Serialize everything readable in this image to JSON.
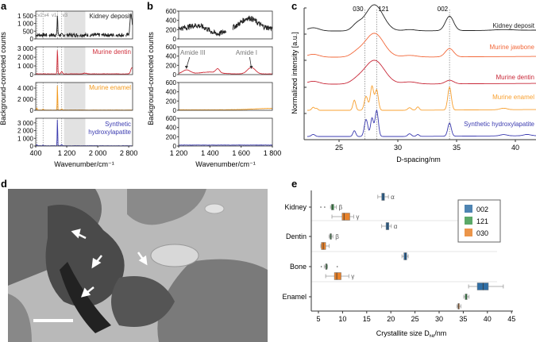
{
  "panel_labels": [
    "a",
    "b",
    "c",
    "d",
    "e"
  ],
  "chart_data": [
    {
      "id": "a",
      "type": "line",
      "xlabel": "Wavenumber/cm⁻¹",
      "ylabel": "Background-corrected counts",
      "xlim": [
        400,
        2900
      ],
      "xticks": [
        400,
        1200,
        2000,
        2800
      ],
      "xtick_labels": [
        "400",
        "1 200",
        "2 000",
        "2 800"
      ],
      "shaded_region": [
        1130,
        1680
      ],
      "reference_lines": [
        {
          "x": 430,
          "label": "v2"
        },
        {
          "x": 590,
          "label": "v4"
        },
        {
          "x": 960,
          "label": "v1"
        },
        {
          "x": 1070,
          "label": "v3"
        }
      ],
      "series": [
        {
          "name": "Kidney deposit",
          "color": "#222222",
          "ylim": [
            0,
            1800
          ],
          "yticks": [
            0,
            500,
            1000,
            1500
          ],
          "ytick_labels": [
            "0",
            "500",
            "1 000",
            "1 500"
          ],
          "baseline": 250,
          "noise": 120,
          "peaks": [
            [
              960,
              1300,
              8
            ],
            [
              2860,
              1400,
              25
            ]
          ],
          "gaps": [
            [
              700,
              740
            ],
            [
              1160,
              1200
            ],
            [
              1500,
              1530
            ],
            [
              1750,
              1790
            ],
            [
              2050,
              2090
            ],
            [
              2420,
              2460
            ],
            [
              2680,
              2720
            ]
          ]
        },
        {
          "name": "Murine dentin",
          "color": "#d0303c",
          "ylim": [
            0,
            3200
          ],
          "yticks": [
            0,
            1000,
            2000,
            3000
          ],
          "ytick_labels": [
            "0",
            "1 000",
            "2 000",
            "3 000"
          ],
          "baseline": 80,
          "noise": 25,
          "peaks": [
            [
              960,
              2800,
              8
            ],
            [
              1070,
              250,
              20
            ],
            [
              2880,
              700,
              30
            ],
            [
              1670,
              80,
              40
            ]
          ],
          "gaps": []
        },
        {
          "name": "Murine enamel",
          "color": "#f39a1e",
          "ylim": [
            0,
            5000
          ],
          "yticks": [
            0,
            2000,
            4000
          ],
          "ytick_labels": [
            "0",
            "2 000",
            "4 000"
          ],
          "baseline": 40,
          "noise": 20,
          "peaks": [
            [
              960,
              4600,
              6
            ],
            [
              430,
              350,
              10
            ],
            [
              590,
              200,
              10
            ],
            [
              1070,
              200,
              15
            ]
          ],
          "gaps": []
        },
        {
          "name": "Synthetic hydroxylapatite",
          "color": "#3b3bb0",
          "ylim": [
            0,
            3600
          ],
          "yticks": [
            0,
            1000,
            2000,
            3000
          ],
          "ytick_labels": [
            "0",
            "1 000",
            "2 000",
            "3 000"
          ],
          "baseline": 30,
          "noise": 15,
          "peaks": [
            [
              960,
              3500,
              6
            ],
            [
              430,
              150,
              10
            ],
            [
              590,
              100,
              10
            ],
            [
              1070,
              150,
              15
            ]
          ],
          "gaps": []
        }
      ]
    },
    {
      "id": "b",
      "type": "line",
      "xlabel": "Wavenumber/cm⁻¹",
      "ylabel": "Background-corrected counts",
      "xlim": [
        1200,
        1800
      ],
      "xticks": [
        1200,
        1400,
        1600,
        1800
      ],
      "xtick_labels": [
        "1 200",
        "1 400",
        "1 600",
        "1 800"
      ],
      "ylim": [
        0,
        600
      ],
      "yticks": [
        0,
        200,
        400,
        600
      ],
      "ytick_labels": [
        "0",
        "200",
        "400",
        "600"
      ],
      "annotations": [
        {
          "text": "Amide III",
          "x": 1250
        },
        {
          "text": "Amide I",
          "x": 1665
        }
      ],
      "series": [
        {
          "name": "Kidney deposit",
          "color": "#222222",
          "baseline": 230,
          "noise": 60,
          "peaks": [
            [
              1650,
              220,
              50
            ],
            [
              1310,
              60,
              40
            ]
          ],
          "dips": [
            [
              1450,
              120,
              40
            ]
          ],
          "gaps": [
            [
              1505,
              1545
            ]
          ]
        },
        {
          "name": "Murine dentin",
          "color": "#d0303c",
          "baseline": 15,
          "noise": 3,
          "peaks": [
            [
              1250,
              85,
              25
            ],
            [
              1450,
              85,
              12
            ],
            [
              1400,
              40,
              60
            ],
            [
              1665,
              140,
              25
            ]
          ],
          "dips": [],
          "gaps": []
        },
        {
          "name": "Murine enamel",
          "color": "#f39a1e",
          "baseline": 10,
          "noise": 3,
          "peaks": [
            [
              1800,
              30,
              120
            ]
          ],
          "dips": [],
          "gaps": []
        },
        {
          "name": "Synthetic hydroxylapatite",
          "color": "#3b3bb0",
          "baseline": 20,
          "noise": 3,
          "peaks": [],
          "dips": [],
          "gaps": []
        }
      ]
    },
    {
      "id": "c",
      "type": "line",
      "xlabel": "D-spacing/nm",
      "ylabel": "Normalized intensity [a.u.]",
      "xlim": [
        22,
        42
      ],
      "xticks": [
        25,
        30,
        35,
        40
      ],
      "reference_lines": [
        {
          "x": 27.2,
          "label": "030"
        },
        {
          "x": 28.2,
          "label": "121"
        },
        {
          "x": 34.4,
          "label": "002"
        }
      ],
      "series": [
        {
          "name": "Kidney deposit",
          "color": "#222222",
          "peaks": [
            [
              22.8,
              0.12,
              0.5
            ],
            [
              26.5,
              0.2,
              0.4
            ],
            [
              28.0,
              1.0,
              0.75
            ],
            [
              31.0,
              0.05,
              0.5
            ],
            [
              34.4,
              0.55,
              0.35
            ],
            [
              39,
              0.03,
              0.8
            ]
          ]
        },
        {
          "name": "Murine jawbone",
          "color": "#f2683a",
          "peaks": [
            [
              22.8,
              0.12,
              0.5
            ],
            [
              26.5,
              0.15,
              0.5
            ],
            [
              28.0,
              1.0,
              0.8
            ],
            [
              31.0,
              0.07,
              0.6
            ],
            [
              34.4,
              0.35,
              0.35
            ]
          ]
        },
        {
          "name": "Murine dentin",
          "color": "#c82838",
          "peaks": [
            [
              22.8,
              0.12,
              0.5
            ],
            [
              26.5,
              0.12,
              0.5
            ],
            [
              28.0,
              1.0,
              0.85
            ],
            [
              31.0,
              0.09,
              0.6
            ],
            [
              34.4,
              0.15,
              0.35
            ]
          ]
        },
        {
          "name": "Murine enamel",
          "color": "#f8a030",
          "peaks": [
            [
              22.8,
              0.12,
              0.12
            ],
            [
              23.1,
              0.07,
              0.1
            ],
            [
              26.3,
              0.4,
              0.12
            ],
            [
              27.3,
              0.55,
              0.15
            ],
            [
              27.8,
              0.95,
              0.14
            ],
            [
              28.2,
              0.8,
              0.14
            ],
            [
              31.0,
              0.1,
              0.15
            ],
            [
              31.7,
              0.13,
              0.12
            ],
            [
              34.4,
              0.9,
              0.15
            ],
            [
              39.0,
              0.06,
              0.3
            ]
          ]
        },
        {
          "name": "Synthetic hydroxylapatite",
          "color": "#3b3bb0",
          "peaks": [
            [
              22.8,
              0.08,
              0.15
            ],
            [
              26.3,
              0.22,
              0.12
            ],
            [
              27.3,
              0.65,
              0.15
            ],
            [
              27.8,
              0.7,
              0.12
            ],
            [
              28.2,
              1.0,
              0.14
            ],
            [
              31.0,
              0.1,
              0.15
            ],
            [
              31.7,
              0.07,
              0.12
            ],
            [
              34.4,
              0.5,
              0.15
            ],
            [
              39.0,
              0.05,
              0.3
            ],
            [
              41.0,
              0.05,
              0.3
            ]
          ]
        }
      ]
    },
    {
      "id": "e",
      "type": "box",
      "xlabel": "Crystallite size D",
      "xlabel_sub": "hkl",
      "xlabel_unit": "/nm",
      "xlim": [
        4,
        45
      ],
      "xticks": [
        5,
        10,
        15,
        20,
        25,
        30,
        35,
        40,
        45
      ],
      "categories": [
        "Kidney",
        "Dentin",
        "Bone",
        "Enamel"
      ],
      "legend": {
        "position": "top-right",
        "entries": [
          {
            "name": "002",
            "color": "#2f6ea5"
          },
          {
            "name": "121",
            "color": "#3e9a4e"
          },
          {
            "name": "030",
            "color": "#e8822a"
          }
        ]
      },
      "boxes": [
        {
          "category": "Kidney",
          "series": "002",
          "whisker": [
            17.3,
            19.5
          ],
          "q": [
            18.1,
            18.7
          ],
          "median": 18.4,
          "outliers": [],
          "tag": "α"
        },
        {
          "category": "Kidney",
          "series": "121",
          "whisker": [
            7.5,
            8.7
          ],
          "q": [
            7.7,
            8.2
          ],
          "median": 7.9,
          "outliers": [
            5.5,
            6.3
          ],
          "tag": "β"
        },
        {
          "category": "Kidney",
          "series": "030",
          "whisker": [
            7.8,
            12.3
          ],
          "q": [
            9.9,
            11.5
          ],
          "median": 10.3,
          "outliers": [],
          "tag": "γ"
        },
        {
          "category": "Dentin",
          "series": "002",
          "whisker": [
            18.1,
            20.1
          ],
          "q": [
            19.0,
            19.6
          ],
          "median": 19.3,
          "outliers": [],
          "tag": "α"
        },
        {
          "category": "Dentin",
          "series": "121",
          "whisker": [
            7.2,
            8.0
          ],
          "q": [
            7.4,
            7.7
          ],
          "median": 7.6,
          "outliers": [],
          "tag": "β"
        },
        {
          "category": "Dentin",
          "series": "030",
          "whisker": [
            5.5,
            7.2
          ],
          "q": [
            5.6,
            6.5
          ],
          "median": 6.0,
          "outliers": [],
          "tag": ""
        },
        {
          "category": "Bone",
          "series": "002",
          "whisker": [
            22.3,
            23.6
          ],
          "q": [
            22.7,
            23.3
          ],
          "median": 23.0,
          "outliers": [],
          "tag": ""
        },
        {
          "category": "Bone",
          "series": "121",
          "whisker": [
            6.2,
            6.9
          ],
          "q": [
            6.5,
            6.8
          ],
          "median": 6.6,
          "outliers": [
            5.6,
            8.9
          ],
          "tag": ""
        },
        {
          "category": "Bone",
          "series": "030",
          "whisker": [
            6.5,
            11.3
          ],
          "q": [
            8.3,
            9.7
          ],
          "median": 8.8,
          "outliers": [],
          "tag": "γ"
        },
        {
          "category": "Enamel",
          "series": "002",
          "whisker": [
            36.1,
            43.3
          ],
          "q": [
            37.9,
            40.2
          ],
          "median": 39.1,
          "outliers": [],
          "tag": ""
        },
        {
          "category": "Enamel",
          "series": "121",
          "whisker": [
            35.1,
            36.2
          ],
          "q": [
            35.4,
            35.8
          ],
          "median": 35.6,
          "outliers": [],
          "tag": ""
        },
        {
          "category": "Enamel",
          "series": "030",
          "whisker": [
            33.7,
            34.5
          ],
          "q": [
            33.9,
            34.2
          ],
          "median": 34.0,
          "outliers": [],
          "tag": ""
        }
      ]
    }
  ],
  "panel_d": {
    "type": "TEM micrograph"
  }
}
